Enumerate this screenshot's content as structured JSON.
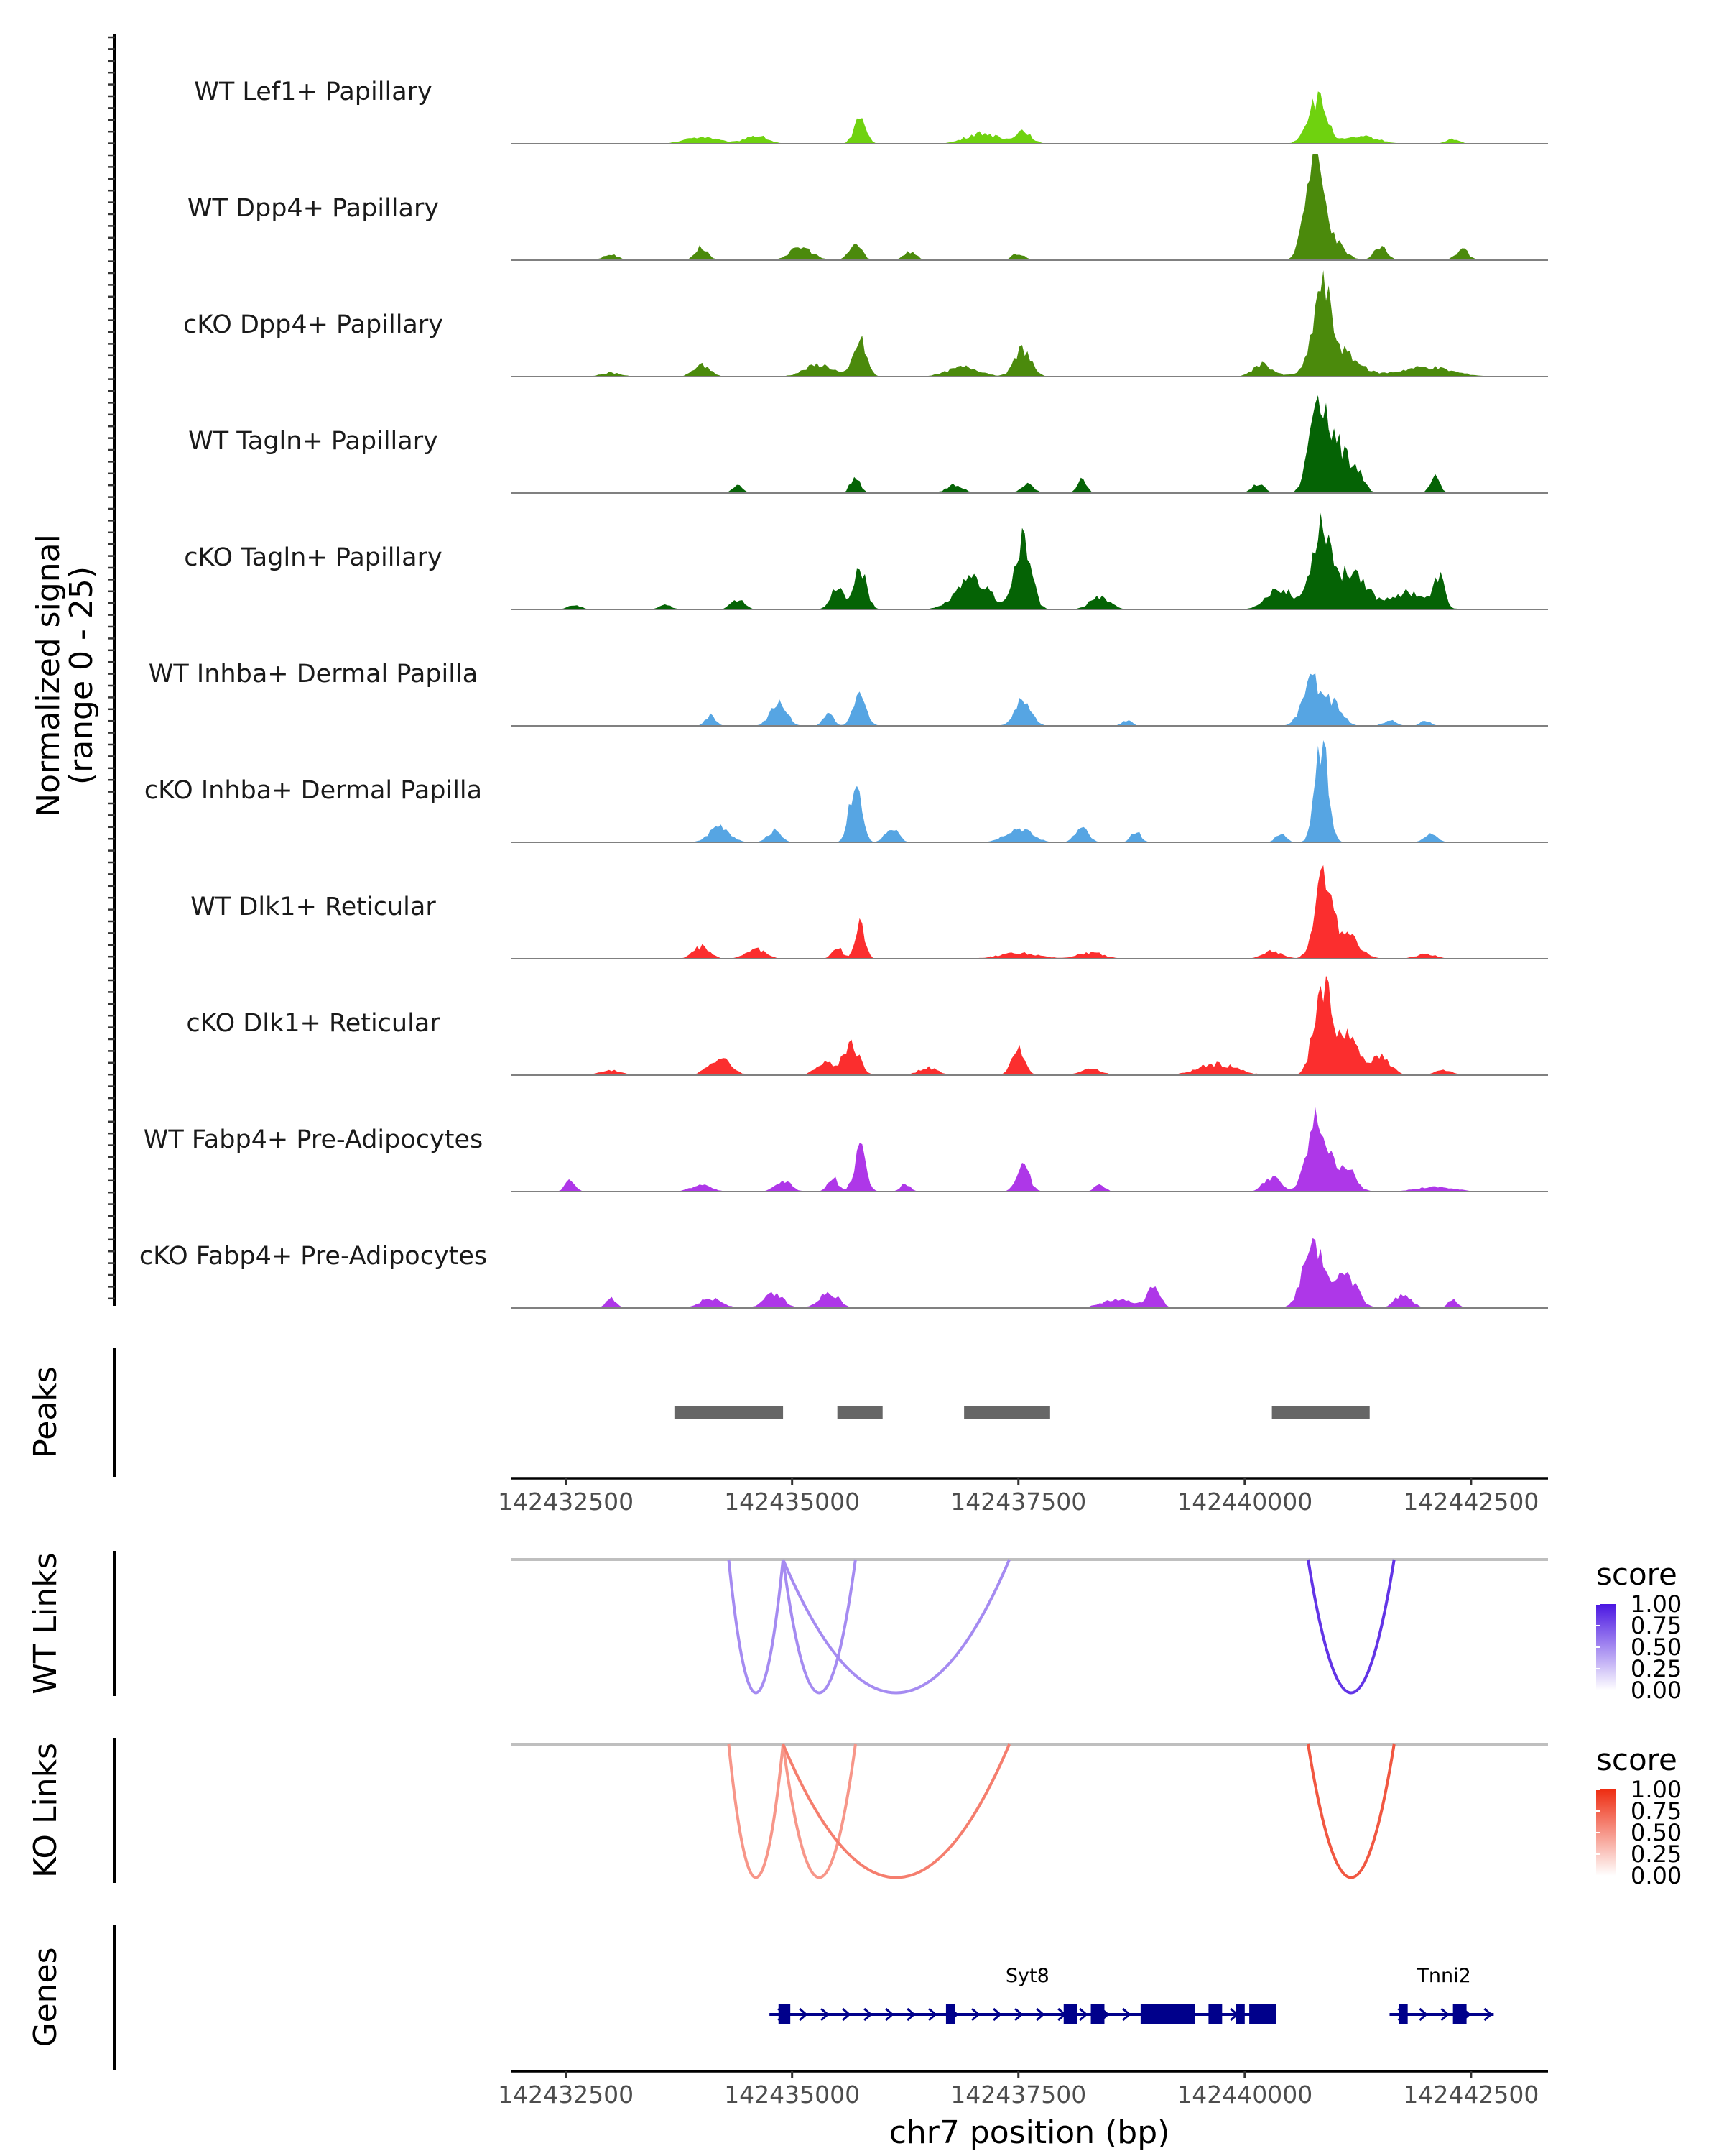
{
  "chart_data": {
    "type": "area",
    "coverage": {
      "ylabel_line1": "Normalized signal",
      "ylabel_line2": "(range 0 - 25)",
      "ylim": [
        0,
        25
      ],
      "tracks": [
        {
          "name": "WT Lef1+ Papillary",
          "color": "#6fd20f",
          "scale": 0.55,
          "peaks": [
            [
              142434000,
              500,
              0.12
            ],
            [
              142434600,
              350,
              0.14
            ],
            [
              142435750,
              180,
              0.45
            ],
            [
              142437100,
              500,
              0.18
            ],
            [
              142437550,
              250,
              0.22
            ],
            [
              142440800,
              300,
              0.75
            ],
            [
              142441300,
              500,
              0.12
            ],
            [
              142442300,
              200,
              0.08
            ]
          ]
        },
        {
          "name": "WT Dpp4+ Papillary",
          "color": "#4b8a0c",
          "scale": 1.0,
          "peaks": [
            [
              142433000,
              250,
              0.05
            ],
            [
              142434000,
              200,
              0.12
            ],
            [
              142435100,
              350,
              0.12
            ],
            [
              142435700,
              200,
              0.15
            ],
            [
              142436300,
              200,
              0.08
            ],
            [
              142437500,
              200,
              0.06
            ],
            [
              142440750,
              250,
              0.9
            ],
            [
              142440900,
              400,
              0.25
            ],
            [
              142441500,
              200,
              0.12
            ],
            [
              142442400,
              200,
              0.1
            ]
          ]
        },
        {
          "name": "cKO Dpp4+ Papillary",
          "color": "#4b8a0c",
          "scale": 0.75,
          "peaks": [
            [
              142433000,
              300,
              0.05
            ],
            [
              142434000,
              250,
              0.15
            ],
            [
              142435750,
              200,
              0.45
            ],
            [
              142435300,
              450,
              0.15
            ],
            [
              142437550,
              250,
              0.35
            ],
            [
              142436900,
              500,
              0.12
            ],
            [
              142440200,
              300,
              0.15
            ],
            [
              142440850,
              250,
              0.9
            ],
            [
              142441000,
              600,
              0.35
            ],
            [
              142442000,
              800,
              0.12
            ]
          ]
        },
        {
          "name": "WT Tagln+ Papillary",
          "color": "#056305",
          "scale": 1.0,
          "peaks": [
            [
              142434400,
              150,
              0.08
            ],
            [
              142435700,
              150,
              0.16
            ],
            [
              142436800,
              250,
              0.08
            ],
            [
              142437600,
              200,
              0.08
            ],
            [
              142438200,
              150,
              0.12
            ],
            [
              142440150,
              200,
              0.08
            ],
            [
              142440800,
              250,
              0.8
            ],
            [
              142441000,
              400,
              0.45
            ],
            [
              142441250,
              200,
              0.15
            ],
            [
              142442100,
              150,
              0.15
            ]
          ]
        },
        {
          "name": "cKO Tagln+ Papillary",
          "color": "#056305",
          "scale": 0.8,
          "peaks": [
            [
              142432600,
              200,
              0.05
            ],
            [
              142433600,
              200,
              0.05
            ],
            [
              142434400,
              200,
              0.12
            ],
            [
              142435500,
              200,
              0.25
            ],
            [
              142435750,
              200,
              0.45
            ],
            [
              142437000,
              500,
              0.35
            ],
            [
              142437550,
              250,
              0.8
            ],
            [
              142438400,
              300,
              0.15
            ],
            [
              142440400,
              400,
              0.25
            ],
            [
              142440850,
              300,
              1.0
            ],
            [
              142441200,
              400,
              0.45
            ],
            [
              142441800,
              600,
              0.2
            ],
            [
              142442150,
              150,
              0.35
            ]
          ]
        },
        {
          "name": "WT Inhba+ Dermal Papilla",
          "color": "#56a5e3",
          "scale": 0.5,
          "peaks": [
            [
              142434100,
              150,
              0.2
            ],
            [
              142434850,
              250,
              0.45
            ],
            [
              142435750,
              200,
              0.6
            ],
            [
              142435400,
              150,
              0.25
            ],
            [
              142437550,
              250,
              0.5
            ],
            [
              142438700,
              150,
              0.1
            ],
            [
              142440750,
              300,
              0.85
            ],
            [
              142441000,
              250,
              0.4
            ],
            [
              142441600,
              200,
              0.1
            ],
            [
              142442000,
              150,
              0.1
            ]
          ]
        },
        {
          "name": "cKO Inhba+ Dermal Papilla",
          "color": "#56a5e3",
          "scale": 0.9,
          "peaks": [
            [
              142434200,
              300,
              0.18
            ],
            [
              142434800,
              200,
              0.12
            ],
            [
              142435700,
              180,
              0.62
            ],
            [
              142436100,
              200,
              0.15
            ],
            [
              142437500,
              400,
              0.15
            ],
            [
              142438200,
              200,
              0.15
            ],
            [
              142438800,
              150,
              0.12
            ],
            [
              142440400,
              150,
              0.1
            ],
            [
              142440850,
              200,
              1.0
            ],
            [
              142442050,
              200,
              0.08
            ]
          ]
        },
        {
          "name": "WT Dlk1+ Reticular",
          "color": "#fb2e2e",
          "scale": 0.75,
          "peaks": [
            [
              142434000,
              250,
              0.15
            ],
            [
              142434600,
              300,
              0.12
            ],
            [
              142435750,
              150,
              0.45
            ],
            [
              142435500,
              150,
              0.15
            ],
            [
              142437500,
              600,
              0.07
            ],
            [
              142438300,
              400,
              0.08
            ],
            [
              142440300,
              300,
              0.1
            ],
            [
              142440850,
              250,
              0.9
            ],
            [
              142441100,
              400,
              0.35
            ],
            [
              142442000,
              300,
              0.06
            ]
          ]
        },
        {
          "name": "cKO Dlk1+ Reticular",
          "color": "#fb2e2e",
          "scale": 0.85,
          "peaks": [
            [
              142433000,
              350,
              0.05
            ],
            [
              142434200,
              350,
              0.18
            ],
            [
              142435650,
              250,
              0.35
            ],
            [
              142435350,
              250,
              0.15
            ],
            [
              142436500,
              300,
              0.08
            ],
            [
              142437500,
              200,
              0.3
            ],
            [
              142438300,
              300,
              0.08
            ],
            [
              142439700,
              600,
              0.12
            ],
            [
              142440850,
              250,
              0.9
            ],
            [
              142441100,
              400,
              0.45
            ],
            [
              142441500,
              300,
              0.2
            ],
            [
              142442200,
              300,
              0.05
            ]
          ]
        },
        {
          "name": "WT Fabp4+ Pre-Adipocytes",
          "color": "#ae37e8",
          "scale": 0.7,
          "peaks": [
            [
              142432550,
              150,
              0.15
            ],
            [
              142434000,
              300,
              0.1
            ],
            [
              142434900,
              250,
              0.15
            ],
            [
              142435450,
              150,
              0.2
            ],
            [
              142435750,
              180,
              0.55
            ],
            [
              142436250,
              150,
              0.1
            ],
            [
              142437550,
              200,
              0.35
            ],
            [
              142438400,
              150,
              0.1
            ],
            [
              142440300,
              250,
              0.2
            ],
            [
              142440800,
              300,
              0.95
            ],
            [
              142441100,
              300,
              0.35
            ],
            [
              142442100,
              600,
              0.06
            ]
          ]
        },
        {
          "name": "cKO Fabp4+ Pre-Adipocytes",
          "color": "#ae37e8",
          "scale": 0.75,
          "peaks": [
            [
              142433000,
              150,
              0.12
            ],
            [
              142434100,
              350,
              0.12
            ],
            [
              142434800,
              300,
              0.18
            ],
            [
              142435400,
              300,
              0.2
            ],
            [
              142438600,
              500,
              0.1
            ],
            [
              142439000,
              200,
              0.25
            ],
            [
              142440750,
              300,
              0.8
            ],
            [
              142441100,
              350,
              0.45
            ],
            [
              142441750,
              250,
              0.18
            ],
            [
              142442300,
              150,
              0.1
            ]
          ]
        }
      ]
    },
    "peaks_track": {
      "label": "Peaks",
      "color": "#666666",
      "regions": [
        [
          142433700,
          142434900
        ],
        [
          142435500,
          142436000
        ],
        [
          142436900,
          142437850
        ],
        [
          142440300,
          142441380
        ]
      ]
    },
    "x_axis": {
      "range": [
        142431900,
        142443350
      ],
      "ticks": [
        142432500,
        142435000,
        142437500,
        142440000,
        142442500
      ],
      "tick_labels": [
        "142432500",
        "142435000",
        "142437500",
        "142440000",
        "142442500"
      ],
      "title": "chr7 position (bp)"
    },
    "wt_links": {
      "label": "WT Links",
      "legend_title": "score",
      "legend_ticks": [
        "1.00",
        "0.75",
        "0.50",
        "0.25",
        "0.00"
      ],
      "color_high": "#4b17e2",
      "links": [
        {
          "start": 142434300,
          "end": 142434900,
          "depth": 0.95,
          "score": 0.4
        },
        {
          "start": 142434900,
          "end": 142435700,
          "depth": 0.95,
          "score": 0.4
        },
        {
          "start": 142434900,
          "end": 142437400,
          "depth": 0.95,
          "score": 0.4
        },
        {
          "start": 142440700,
          "end": 142441650,
          "depth": 0.95,
          "score": 0.9
        }
      ]
    },
    "ko_links": {
      "label": "KO Links",
      "legend_title": "score",
      "legend_ticks": [
        "1.00",
        "0.75",
        "0.50",
        "0.25",
        "0.00"
      ],
      "color_high": "#ee2d12",
      "links": [
        {
          "start": 142434300,
          "end": 142434900,
          "depth": 0.95,
          "score": 0.4
        },
        {
          "start": 142434900,
          "end": 142435700,
          "depth": 0.95,
          "score": 0.4
        },
        {
          "start": 142434900,
          "end": 142437400,
          "depth": 0.95,
          "score": 0.55
        },
        {
          "start": 142440700,
          "end": 142441650,
          "depth": 0.95,
          "score": 0.8
        }
      ]
    },
    "genes_track": {
      "label": "Genes",
      "color": "#00008b",
      "genes": [
        {
          "name": "Syt8",
          "start": 142434750,
          "end": 142440350,
          "label_pos": 142437600,
          "exons": [
            [
              142434850,
              142434980
            ],
            [
              142436700,
              142436800
            ],
            [
              142438000,
              142438150
            ],
            [
              142438300,
              142438450
            ],
            [
              142438850,
              142439000
            ],
            [
              142439000,
              142439450
            ],
            [
              142439600,
              142439750
            ],
            [
              142439900,
              142440000
            ],
            [
              142440050,
              142440350
            ]
          ]
        },
        {
          "name": "Tnni2",
          "start": 142441600,
          "end": 142442750,
          "label_pos": 142442200,
          "exons": [
            [
              142441700,
              142441800
            ],
            [
              142442300,
              142442450
            ]
          ]
        }
      ]
    }
  }
}
